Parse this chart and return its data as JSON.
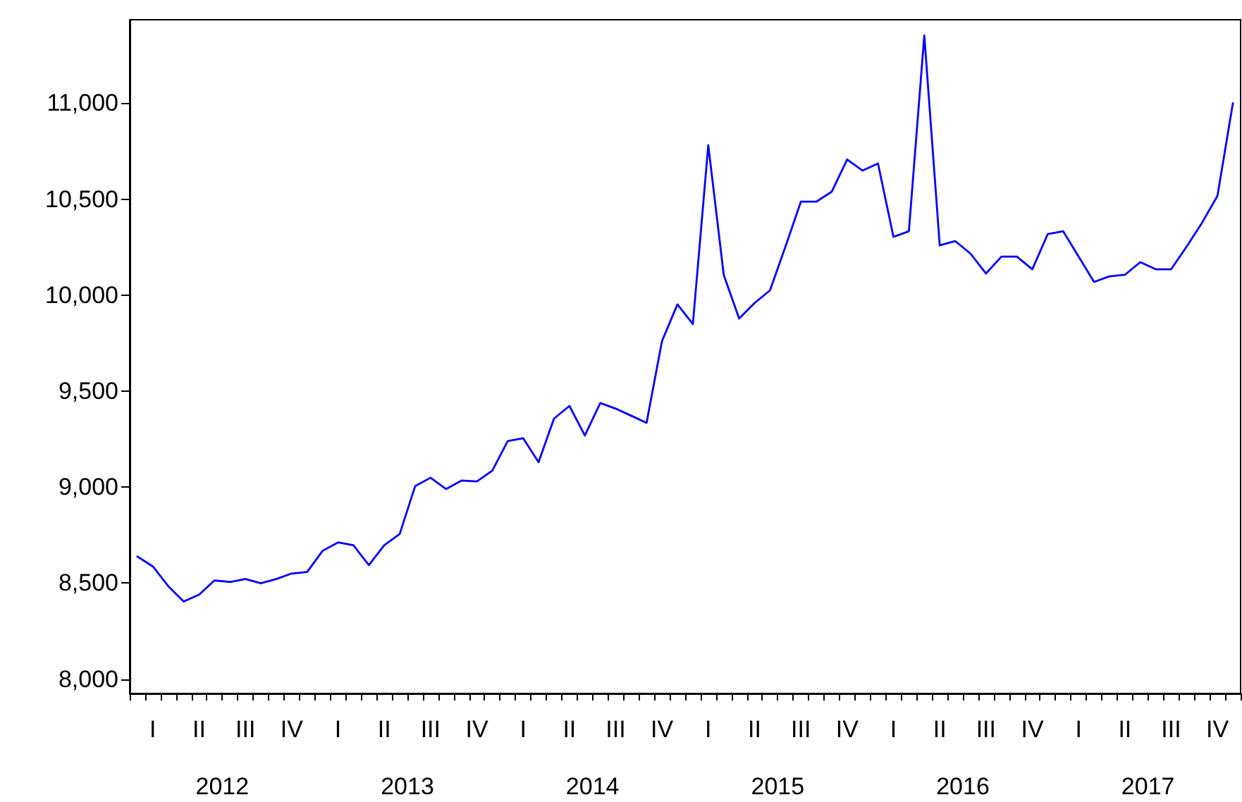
{
  "chart_data": {
    "type": "line",
    "categories": [
      null,
      "I",
      null,
      null,
      "II",
      null,
      null,
      "III",
      null,
      null,
      "IV",
      null,
      null,
      "I",
      null,
      null,
      "II",
      null,
      null,
      "III",
      null,
      null,
      "IV",
      null,
      null,
      "I",
      null,
      null,
      "II",
      null,
      null,
      "III",
      null,
      null,
      "IV",
      null,
      null,
      "I",
      null,
      null,
      "II",
      null,
      null,
      "III",
      null,
      null,
      "IV",
      null,
      null,
      "I",
      null,
      null,
      "II",
      null,
      null,
      "III",
      null,
      null,
      "IV",
      null,
      null,
      "I",
      null,
      null,
      "II",
      null,
      null,
      "III",
      null,
      null,
      "IV",
      null
    ],
    "series": [
      {
        "color": "#0000ff",
        "values": [
          8638,
          8587,
          8484,
          8404,
          8440,
          8514,
          8506,
          8521,
          8499,
          8521,
          8550,
          8558,
          8668,
          8712,
          8697,
          8594,
          8697,
          8756,
          9005,
          9049,
          8990,
          9034,
          9030,
          9086,
          9240,
          9255,
          9130,
          9357,
          9423,
          9269,
          9438,
          9409,
          9372,
          9335,
          9761,
          9952,
          9849,
          10781,
          10106,
          9878,
          9959,
          10025,
          10253,
          10487,
          10487,
          10539,
          10707,
          10649,
          10686,
          10304,
          10333,
          11353,
          10260,
          10282,
          10216,
          10113,
          10201,
          10201,
          10135,
          10318,
          10333,
          10201,
          10069,
          10098,
          10106,
          10172,
          10135,
          10135,
          10253,
          10377,
          10517,
          11000
        ]
      }
    ],
    "ylim": [
      7925,
      11435
    ],
    "yticks": [
      {
        "value": 8000,
        "label": "8,000"
      },
      {
        "value": 8500,
        "label": "8,500"
      },
      {
        "value": 9000,
        "label": "9,000"
      },
      {
        "value": 9500,
        "label": "9,500"
      },
      {
        "value": 10000,
        "label": "10,000"
      },
      {
        "value": 10500,
        "label": "10,500"
      },
      {
        "value": 11000,
        "label": "11,000"
      }
    ],
    "annotations": [
      "2012",
      "2013",
      "2014",
      "2015",
      "2016",
      "2017"
    ],
    "grid": false,
    "marker": "none",
    "line_style": "solid"
  }
}
